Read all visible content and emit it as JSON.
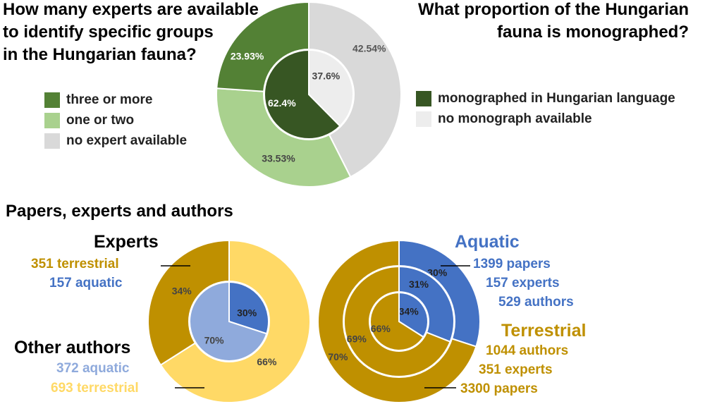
{
  "headings": {
    "experts_q": [
      "How many experts are available",
      "to identify specific groups",
      "in the Hungarian fauna?"
    ],
    "monograph_q": [
      "What proportion of the Hungarian",
      "fauna is monographed?"
    ],
    "papers": "Papers, experts and authors"
  },
  "legend_experts": [
    {
      "label": "three or more",
      "color": "#538135"
    },
    {
      "label": "one or two",
      "color": "#a9d18e"
    },
    {
      "label": "no expert available",
      "color": "#d9d9d9"
    }
  ],
  "legend_monograph": [
    {
      "label": "monographed in Hungarian language",
      "color": "#375623"
    },
    {
      "label": "no monograph available",
      "color": "#ededed"
    }
  ],
  "bottom_left_labels": {
    "experts_title": "Experts",
    "experts_terrestrial": "351 terrestrial",
    "experts_aquatic": "157 aquatic",
    "others_title": "Other authors",
    "others_aquatic": "372 aquatic",
    "others_terrestrial": "693 terrestrial"
  },
  "bottom_right_labels": {
    "aquatic_title": "Aquatic",
    "aquatic_papers": "1399 papers",
    "aquatic_experts": "157 experts",
    "aquatic_authors": "529 authors",
    "terrestrial_title": "Terrestrial",
    "terrestrial_authors": "1044 authors",
    "terrestrial_experts": "351 experts",
    "terrestrial_papers": "3300 papers"
  },
  "colors": {
    "terrestrial": "#bf9000",
    "terrestrial_light": "#ffd966",
    "aquatic": "#4472c4",
    "aquatic_light": "#8faadc",
    "divider": "#ffffff"
  },
  "chart_data": [
    {
      "type": "pie",
      "rings": [
        {
          "name": "outer",
          "slices": [
            {
              "label": "no expert available",
              "value": 42.54,
              "display": "42.54%"
            },
            {
              "label": "one or two",
              "value": 33.53,
              "display": "33.53%"
            },
            {
              "label": "three or more",
              "value": 23.93,
              "display": "23.93%"
            }
          ]
        },
        {
          "name": "inner",
          "slices": [
            {
              "label": "no monograph available",
              "value": 37.6,
              "display": "37.6%"
            },
            {
              "label": "monographed in Hungarian language",
              "value": 62.4,
              "display": "62.4%"
            }
          ]
        }
      ]
    },
    {
      "type": "pie",
      "rings": [
        {
          "name": "authors",
          "slices": [
            {
              "label": "Other authors terrestrial",
              "value": 66,
              "display": "66%"
            },
            {
              "label": "Experts terrestrial",
              "value": 34,
              "display": "34%"
            }
          ]
        },
        {
          "name": "experts",
          "slices": [
            {
              "label": "aquatic experts",
              "value": 30,
              "display": "30%"
            },
            {
              "label": "aquatic other authors",
              "value": 70,
              "display": "70%"
            }
          ]
        }
      ]
    },
    {
      "type": "pie",
      "rings": [
        {
          "name": "papers",
          "slices": [
            {
              "label": "Aquatic papers",
              "value": 30,
              "display": "30%"
            },
            {
              "label": "Terrestrial papers",
              "value": 70,
              "display": "70%"
            }
          ]
        },
        {
          "name": "experts",
          "slices": [
            {
              "label": "Aquatic experts",
              "value": 31,
              "display": "31%"
            },
            {
              "label": "Terrestrial experts",
              "value": 69,
              "display": "69%"
            }
          ]
        },
        {
          "name": "authors",
          "slices": [
            {
              "label": "Aquatic authors",
              "value": 34,
              "display": "34%"
            },
            {
              "label": "Terrestrial authors",
              "value": 66,
              "display": "66%"
            }
          ]
        }
      ]
    }
  ]
}
